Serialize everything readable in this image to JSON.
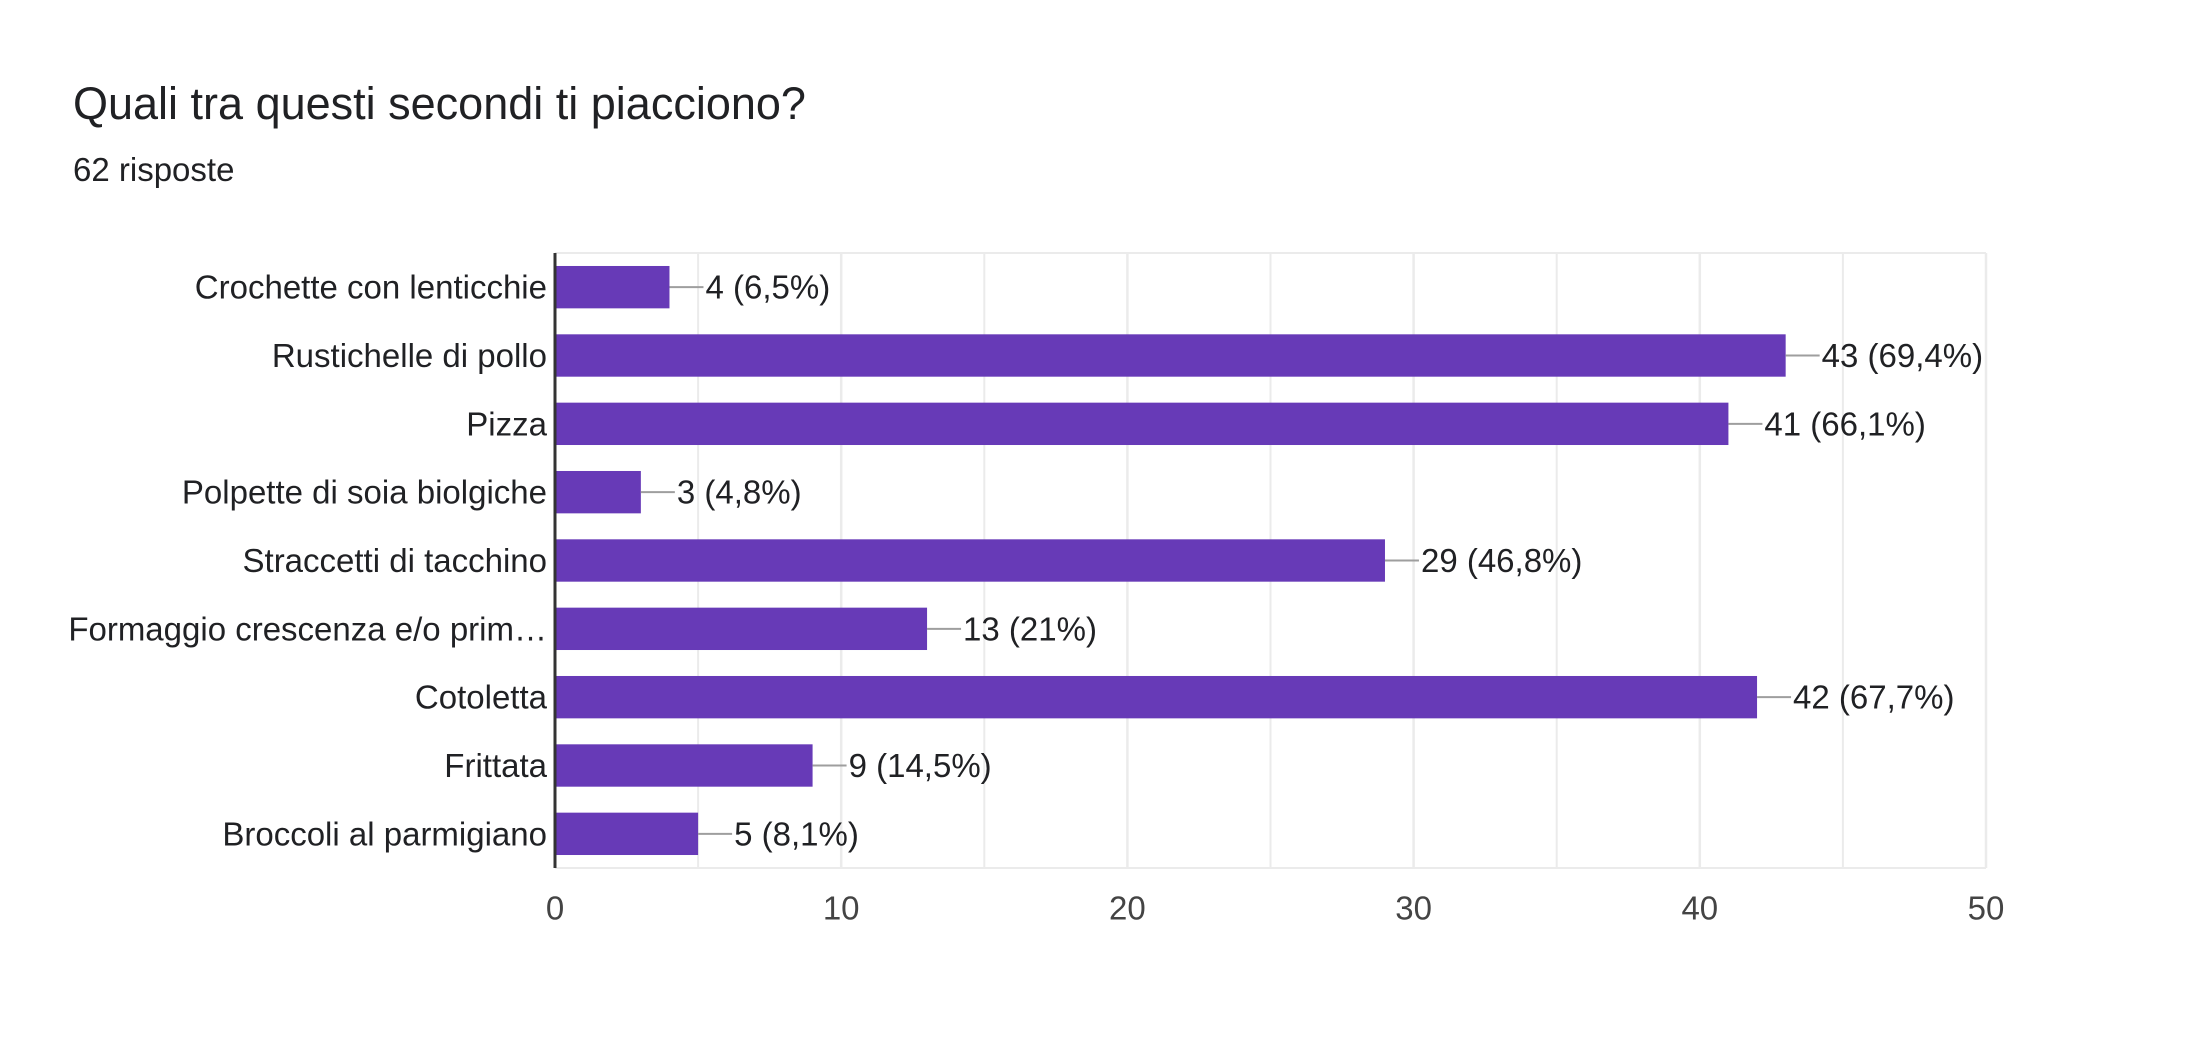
{
  "header": {
    "title": "Quali tra questi secondi ti piacciono?",
    "response_count": "62 risposte"
  },
  "colors": {
    "bar": "#673ab7",
    "grid": "#ebebeb",
    "axis": "#333333",
    "leader": "#9e9e9e"
  },
  "chart_data": {
    "type": "bar",
    "orientation": "horizontal",
    "title": "",
    "xlabel": "",
    "ylabel": "",
    "xlim": [
      0,
      50
    ],
    "x_ticks": [
      0,
      10,
      20,
      30,
      40,
      50
    ],
    "grid": true,
    "categories": [
      "Crochette con lenticchie",
      "Rustichelle di pollo",
      "Pizza",
      "Polpette di soia biolgiche",
      "Straccetti di tacchino",
      "Formaggio crescenza e/o prim…",
      "Cotoletta",
      "Frittata",
      "Broccoli al parmigiano"
    ],
    "values": [
      4,
      43,
      41,
      3,
      29,
      13,
      42,
      9,
      5
    ],
    "data_labels": [
      "4 (6,5%)",
      "43 (69,4%)",
      "41 (66,1%)",
      "3 (4,8%)",
      "29 (46,8%)",
      "13 (21%)",
      "42 (67,7%)",
      "9 (14,5%)",
      "5 (8,1%)"
    ]
  }
}
